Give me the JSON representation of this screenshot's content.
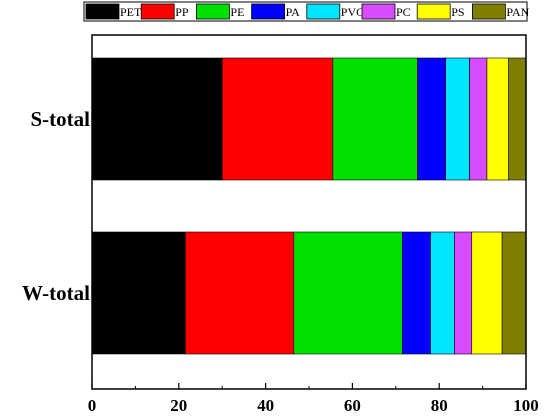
{
  "chart_data": {
    "type": "bar",
    "orientation": "horizontal",
    "stacked": true,
    "title": "",
    "xlabel": "",
    "ylabel": "",
    "xlim": [
      0,
      100
    ],
    "x_ticks": [
      "0",
      "20",
      "40",
      "60",
      "80",
      "100"
    ],
    "grid": false,
    "legend_position": "top",
    "categories": [
      "S-total",
      "W-total"
    ],
    "series": [
      {
        "name": "PET",
        "color": "#000000",
        "values": [
          30.0,
          21.5
        ]
      },
      {
        "name": "PP",
        "color": "#ff0000",
        "values": [
          25.5,
          25.0
        ]
      },
      {
        "name": "PE",
        "color": "#00e000",
        "values": [
          19.5,
          25.0
        ]
      },
      {
        "name": "PA",
        "color": "#0000ff",
        "values": [
          6.5,
          6.5
        ]
      },
      {
        "name": "PVC",
        "color": "#00e5ff",
        "values": [
          5.5,
          5.5
        ]
      },
      {
        "name": "PC",
        "color": "#d94bff",
        "values": [
          4.0,
          4.0
        ]
      },
      {
        "name": "PS",
        "color": "#ffff00",
        "values": [
          5.0,
          7.0
        ]
      },
      {
        "name": "PAN",
        "color": "#808000",
        "values": [
          4.0,
          5.5
        ]
      }
    ]
  }
}
